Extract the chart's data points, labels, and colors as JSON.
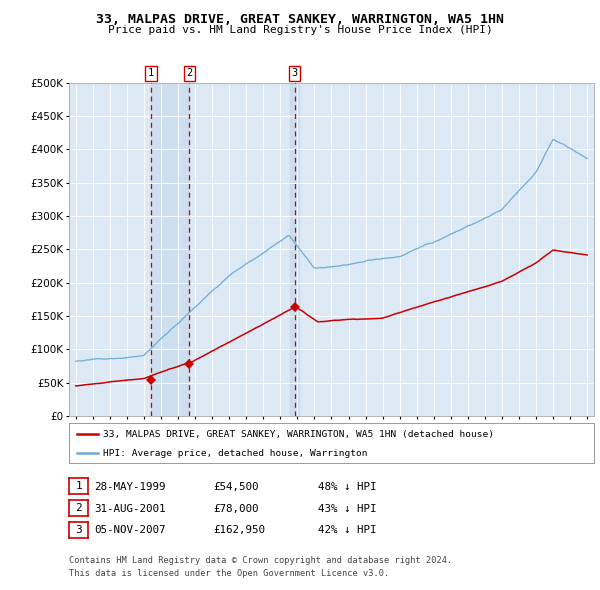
{
  "title": "33, MALPAS DRIVE, GREAT SANKEY, WARRINGTON, WA5 1HN",
  "subtitle": "Price paid vs. HM Land Registry's House Price Index (HPI)",
  "ylim": [
    0,
    500000
  ],
  "yticks": [
    0,
    50000,
    100000,
    150000,
    200000,
    250000,
    300000,
    350000,
    400000,
    450000,
    500000
  ],
  "sale_dates_num": [
    1999.41,
    2001.66,
    2007.84
  ],
  "sale_prices": [
    54500,
    78000,
    162950
  ],
  "sale_labels": [
    "1",
    "2",
    "3"
  ],
  "legend_label_red": "33, MALPAS DRIVE, GREAT SANKEY, WARRINGTON, WA5 1HN (detached house)",
  "legend_label_blue": "HPI: Average price, detached house, Warrington",
  "table_rows": [
    [
      "1",
      "28-MAY-1999",
      "£54,500",
      "48% ↓ HPI"
    ],
    [
      "2",
      "31-AUG-2001",
      "£78,000",
      "43% ↓ HPI"
    ],
    [
      "3",
      "05-NOV-2007",
      "£162,950",
      "42% ↓ HPI"
    ]
  ],
  "footer_line1": "Contains HM Land Registry data © Crown copyright and database right 2024.",
  "footer_line2": "This data is licensed under the Open Government Licence v3.0.",
  "red_color": "#cc0000",
  "blue_color": "#6dadd4",
  "vline_color": "#cc0000",
  "shade_color": "#c5d9ed",
  "plot_bg_color": "#dce9f5",
  "grid_color": "#ffffff"
}
